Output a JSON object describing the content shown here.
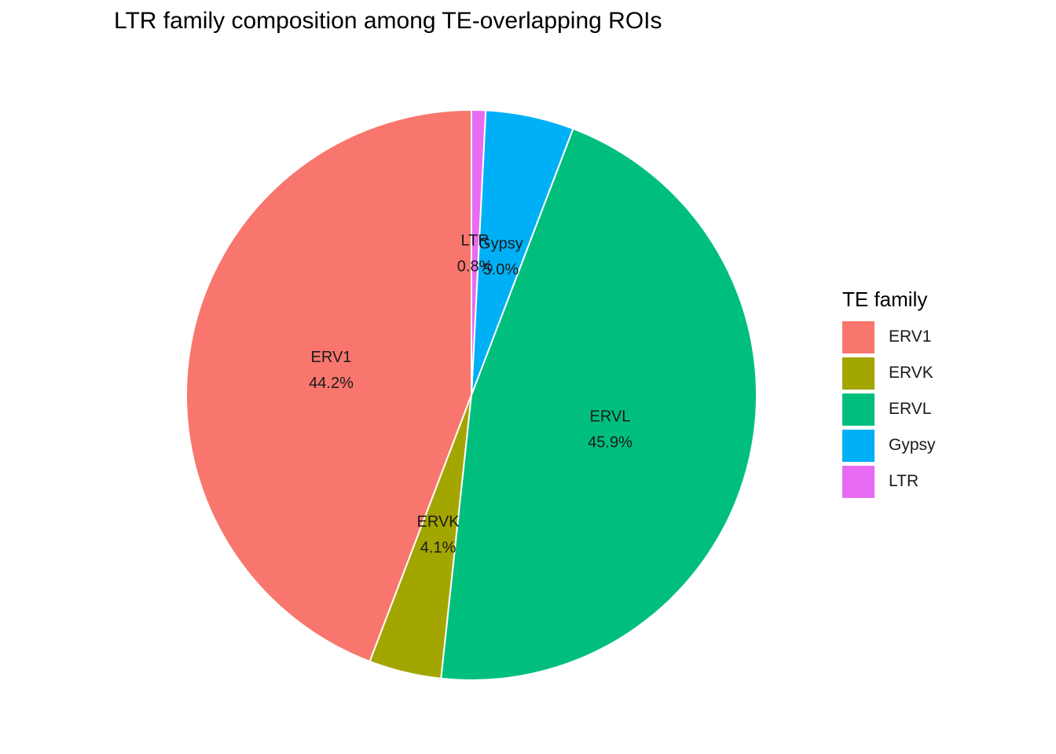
{
  "chart_data": {
    "type": "pie",
    "title": "LTR family composition among TE-overlapping ROIs",
    "legend_title": "TE family",
    "legend_position": "right",
    "start": "top",
    "direction": "counter-clockwise",
    "slices": [
      {
        "name": "ERV1",
        "value": 44.2,
        "label": "44.2%",
        "color": "#F8766D"
      },
      {
        "name": "ERVK",
        "value": 4.1,
        "label": "4.1%",
        "color": "#A3A500"
      },
      {
        "name": "ERVL",
        "value": 45.9,
        "label": "45.9%",
        "color": "#00BF7D"
      },
      {
        "name": "Gypsy",
        "value": 5.0,
        "label": "5.0%",
        "color": "#00B0F6"
      },
      {
        "name": "LTR",
        "value": 0.8,
        "label": "0.8%",
        "color": "#E76BF3"
      }
    ]
  }
}
